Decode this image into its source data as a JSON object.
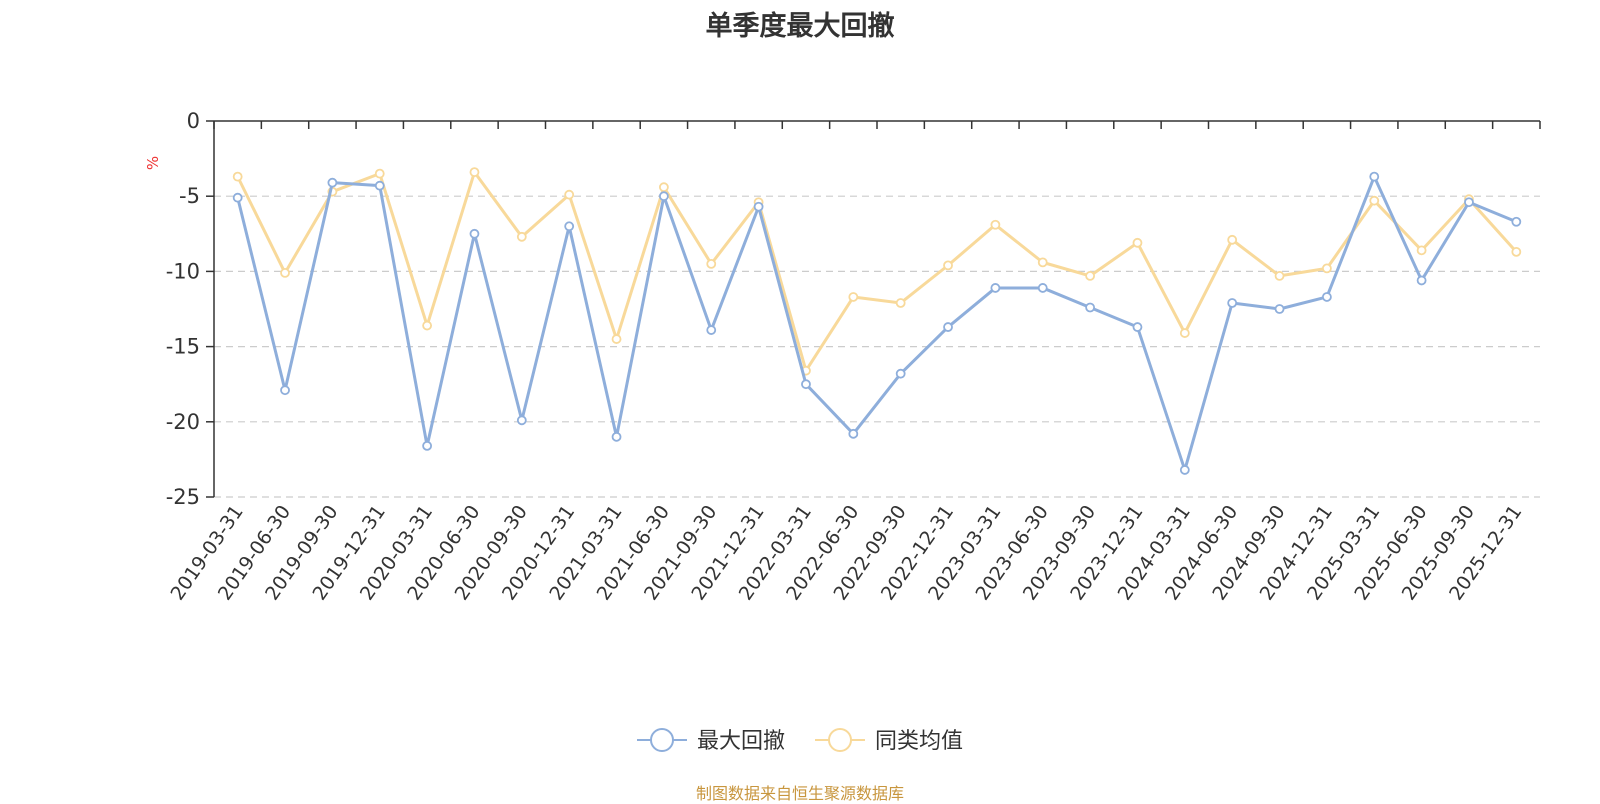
{
  "chart_data": {
    "type": "line",
    "title": "单季度最大回撤",
    "ylabel": "%",
    "ylim": [
      -25,
      0
    ],
    "yticks": [
      "0",
      "-5",
      "-10",
      "-15",
      "-20",
      "-25"
    ],
    "grid": true,
    "legend_position": "bottom-center",
    "categories": [
      "2019-03-31",
      "2019-06-30",
      "2019-09-30",
      "2019-12-31",
      "2020-03-31",
      "2020-06-30",
      "2020-09-30",
      "2020-12-31",
      "2021-03-31",
      "2021-06-30",
      "2021-09-30",
      "2021-12-31",
      "2022-03-31",
      "2022-06-30",
      "2022-09-30",
      "2022-12-31",
      "2023-03-31",
      "2023-06-30",
      "2023-09-30",
      "2023-12-31",
      "2024-03-31",
      "2024-06-30",
      "2024-09-30",
      "2024-12-31",
      "2025-03-31",
      "2025-06-30",
      "2025-09-30",
      "2025-12-31"
    ],
    "series": [
      {
        "name": "最大回撤",
        "color": "#8eaedb",
        "values": [
          -5.1,
          -17.9,
          -4.1,
          -4.3,
          -21.6,
          -7.5,
          -19.9,
          -7.0,
          -21.0,
          -5.0,
          -13.9,
          -5.7,
          -17.5,
          -20.8,
          -16.8,
          -13.7,
          -11.1,
          -11.1,
          -12.4,
          -13.7,
          -23.2,
          -12.1,
          -12.5,
          -11.7,
          -3.7,
          -10.6,
          -5.4,
          -6.7
        ]
      },
      {
        "name": "同类均值",
        "color": "#f8d99a",
        "values": [
          -3.7,
          -10.1,
          -4.7,
          -3.5,
          -13.6,
          -3.4,
          -7.7,
          -4.9,
          -14.5,
          -4.4,
          -9.5,
          -5.4,
          -16.6,
          -11.7,
          -12.1,
          -9.6,
          -6.9,
          -9.4,
          -10.3,
          -8.1,
          -14.1,
          -7.9,
          -10.3,
          -9.8,
          -5.3,
          -8.6,
          -5.2,
          -8.7
        ]
      }
    ]
  },
  "source": "制图数据来自恒生聚源数据库"
}
